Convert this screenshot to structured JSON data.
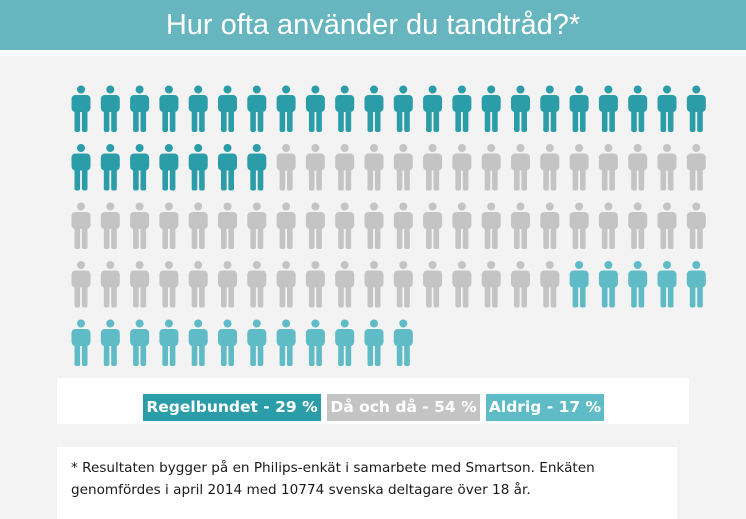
{
  "title": "Hur ofta använder du tandtråd?*",
  "chart_data": {
    "type": "pictogram",
    "total_icons": 100,
    "series": [
      {
        "name": "Regelbundet",
        "value": 29,
        "color": "#2b9da8"
      },
      {
        "name": "Då och då",
        "value": 54,
        "color": "#c4c4c4"
      },
      {
        "name": "Aldrig",
        "value": 17,
        "color": "#5fbcc6"
      }
    ]
  },
  "legend": {
    "regelbundet": "Regelbundet - 29 %",
    "da_och_da": "Då och då - 54 %",
    "aldrig": "Aldrig - 17 %"
  },
  "footnote": {
    "line1": "* Resultaten bygger på en Philips-enkät i samarbete med Smartson. Enkäten",
    "line2": "genomfördes i april 2014 med 10774 svenska deltagare över 18 år."
  }
}
